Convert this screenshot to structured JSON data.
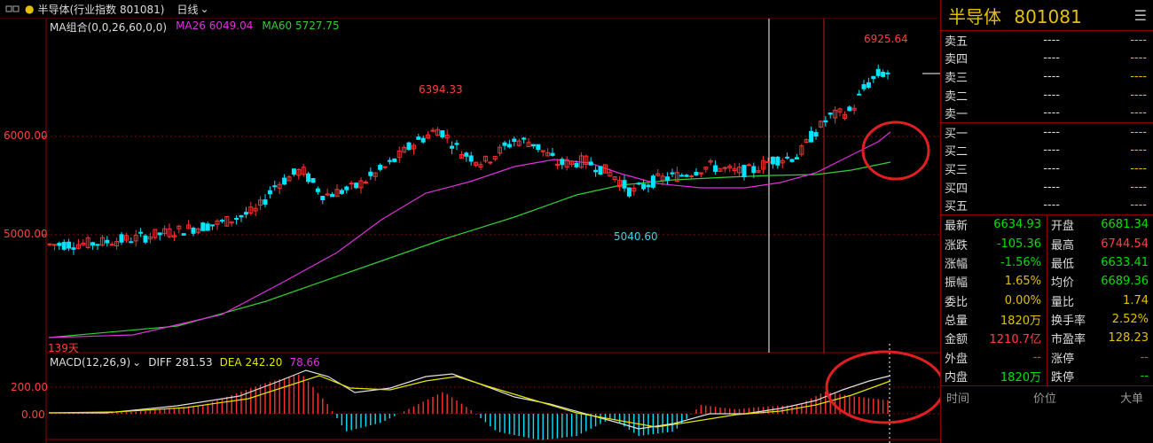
{
  "topbar": {
    "window_icon": "window-icon",
    "security": "半导体(行业指数 801081)",
    "period": "日线"
  },
  "ma": {
    "group_label": "MA组合(0,0,26,60,0,0)",
    "ma26": "MA26 6049.04",
    "ma60": "MA60 5727.75"
  },
  "price_axis": {
    "high": "6000.00",
    "low": "5000.00"
  },
  "annotations": {
    "peak1": "6394.33",
    "trough": "5040.60",
    "peak2": "6925.64",
    "days": "139天"
  },
  "macd": {
    "label": "MACD(12,26,9)",
    "diff": "DIFF 281.53",
    "dea": "DEA 242.20",
    "macd": "78.66",
    "axis_high": "200.00",
    "axis_zero": "0.00"
  },
  "colors": {
    "up": "#ff3030",
    "down": "#00e5ff",
    "ma26": "#e030e0",
    "ma60": "#30d030",
    "diff": "#e0e0e0",
    "dea": "#e5e500"
  },
  "quote": {
    "title": "半导体",
    "code": "801081",
    "menu_icon": "hamburger-menu-icon"
  },
  "orderbook": [
    {
      "label": "卖五",
      "price": "----",
      "vol": "----"
    },
    {
      "label": "卖四",
      "price": "----",
      "vol": "----"
    },
    {
      "label": "卖三",
      "price": "----",
      "vol": "----"
    },
    {
      "label": "卖二",
      "price": "----",
      "vol": "----"
    },
    {
      "label": "卖一",
      "price": "----",
      "vol": "----"
    },
    {
      "label": "买一",
      "price": "----",
      "vol": "----"
    },
    {
      "label": "买二",
      "price": "----",
      "vol": "----"
    },
    {
      "label": "买三",
      "price": "----",
      "vol": "----"
    },
    {
      "label": "买四",
      "price": "----",
      "vol": "----"
    },
    {
      "label": "买五",
      "price": "----",
      "vol": "----"
    }
  ],
  "stats": [
    {
      "k": "最新",
      "v": "6634.93",
      "c": "green",
      "k2": "开盘",
      "v2": "6681.34",
      "c2": "green"
    },
    {
      "k": "涨跌",
      "v": "-105.36",
      "c": "green",
      "k2": "最高",
      "v2": "6744.54",
      "c2": "red"
    },
    {
      "k": "涨幅",
      "v": "-1.56%",
      "c": "green",
      "k2": "最低",
      "v2": "6633.41",
      "c2": "green"
    },
    {
      "k": "振幅",
      "v": "1.65%",
      "c": "yellow",
      "k2": "均价",
      "v2": "6689.36",
      "c2": "green"
    },
    {
      "k": "委比",
      "v": "0.00%",
      "c": "yellow",
      "k2": "量比",
      "v2": "1.74",
      "c2": "yellow"
    },
    {
      "k": "总量",
      "v": "1820万",
      "c": "yellow",
      "k2": "换手率",
      "v2": "2.52%",
      "c2": "yellow"
    },
    {
      "k": "金额",
      "v": "1210.7亿",
      "c": "red",
      "k2": "市盈率",
      "v2": "128.23",
      "c2": "yellow"
    },
    {
      "k": "外盘",
      "v": "--",
      "c": "red",
      "k2": "涨停",
      "v2": "--",
      "c2": "red"
    },
    {
      "k": "内盘",
      "v": "1820万",
      "c": "green",
      "k2": "跌停",
      "v2": "--",
      "c2": "green"
    }
  ],
  "footer": {
    "time": "时间",
    "price": "价位",
    "big": "大单"
  }
}
